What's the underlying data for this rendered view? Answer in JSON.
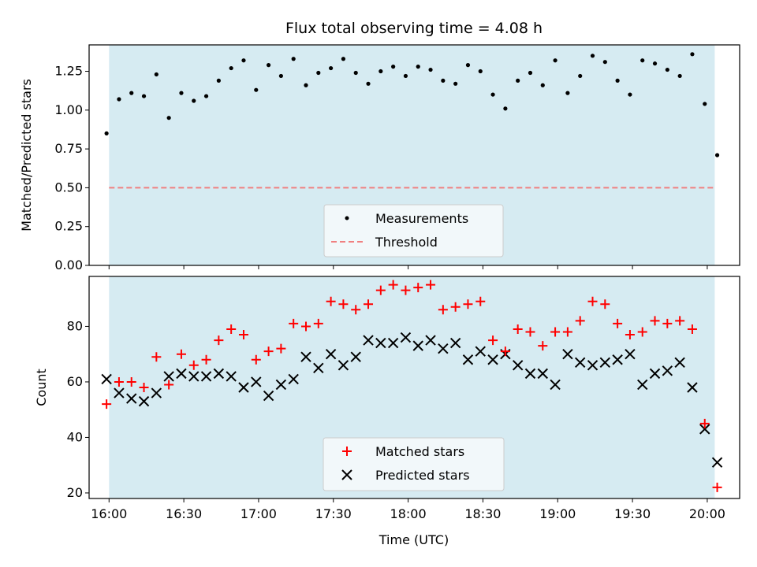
{
  "chart_data": [
    {
      "type": "scatter",
      "title": "Flux total observing time = 4.08 h",
      "ylabel": "Matched/Predicted stars",
      "ylim": [
        0,
        1.42
      ],
      "yticks": [
        0.0,
        0.25,
        0.5,
        0.75,
        1.0,
        1.25
      ],
      "ytick_labels": [
        "0.00",
        "0.25",
        "0.50",
        "0.75",
        "1.00",
        "1.25"
      ],
      "shaded_span": [
        "16:00",
        "20:03"
      ],
      "legend_position": "lower center",
      "series": [
        {
          "name": "Measurements",
          "marker": "dot",
          "color": "#000000",
          "x": [
            "15:59",
            "16:04",
            "16:09",
            "16:14",
            "16:19",
            "16:24",
            "16:29",
            "16:34",
            "16:39",
            "16:44",
            "16:49",
            "16:54",
            "16:59",
            "17:04",
            "17:09",
            "17:14",
            "17:19",
            "17:24",
            "17:29",
            "17:34",
            "17:39",
            "17:44",
            "17:49",
            "17:54",
            "17:59",
            "18:04",
            "18:09",
            "18:14",
            "18:19",
            "18:24",
            "18:29",
            "18:34",
            "18:39",
            "18:44",
            "18:49",
            "18:54",
            "18:59",
            "19:04",
            "19:09",
            "19:14",
            "19:19",
            "19:24",
            "19:29",
            "19:34",
            "19:39",
            "19:44",
            "19:49",
            "19:54",
            "19:59",
            "20:04"
          ],
          "y": [
            0.85,
            1.07,
            1.11,
            1.09,
            1.23,
            0.95,
            1.11,
            1.06,
            1.09,
            1.19,
            1.27,
            1.32,
            1.13,
            1.29,
            1.22,
            1.33,
            1.16,
            1.24,
            1.27,
            1.33,
            1.24,
            1.17,
            1.25,
            1.28,
            1.22,
            1.28,
            1.26,
            1.19,
            1.17,
            1.29,
            1.25,
            1.1,
            1.01,
            1.19,
            1.24,
            1.16,
            1.32,
            1.11,
            1.22,
            1.35,
            1.31,
            1.19,
            1.1,
            1.32,
            1.3,
            1.26,
            1.22,
            1.36,
            1.04,
            0.71
          ]
        },
        {
          "name": "Threshold",
          "style": "dashed",
          "color": "#f08080",
          "y": 0.5
        }
      ]
    },
    {
      "type": "scatter",
      "ylabel": "Count",
      "xlabel": "Time (UTC)",
      "ylim": [
        18,
        98
      ],
      "yticks": [
        20,
        40,
        60,
        80
      ],
      "xlim": [
        "15:52",
        "20:13"
      ],
      "xticks": [
        "16:00",
        "16:30",
        "17:00",
        "17:30",
        "18:00",
        "18:30",
        "19:00",
        "19:30",
        "20:00"
      ],
      "shaded_span": [
        "16:00",
        "20:03"
      ],
      "legend_position": "lower center",
      "series": [
        {
          "name": "Matched stars",
          "marker": "+",
          "color": "#ff0000",
          "x": [
            "15:59",
            "16:04",
            "16:09",
            "16:14",
            "16:19",
            "16:24",
            "16:29",
            "16:34",
            "16:39",
            "16:44",
            "16:49",
            "16:54",
            "16:59",
            "17:04",
            "17:09",
            "17:14",
            "17:19",
            "17:24",
            "17:29",
            "17:34",
            "17:39",
            "17:44",
            "17:49",
            "17:54",
            "17:59",
            "18:04",
            "18:09",
            "18:14",
            "18:19",
            "18:24",
            "18:29",
            "18:34",
            "18:39",
            "18:44",
            "18:49",
            "18:54",
            "18:59",
            "19:04",
            "19:09",
            "19:14",
            "19:19",
            "19:24",
            "19:29",
            "19:34",
            "19:39",
            "19:44",
            "19:49",
            "19:54",
            "19:59",
            "20:04"
          ],
          "y": [
            52,
            60,
            60,
            58,
            69,
            59,
            70,
            66,
            68,
            75,
            79,
            77,
            68,
            71,
            72,
            81,
            80,
            81,
            89,
            88,
            86,
            88,
            93,
            95,
            93,
            94,
            95,
            86,
            87,
            88,
            89,
            75,
            71,
            79,
            78,
            73,
            78,
            78,
            82,
            89,
            88,
            81,
            77,
            78,
            82,
            81,
            82,
            79,
            45,
            22
          ]
        },
        {
          "name": "Predicted stars",
          "marker": "x",
          "color": "#000000",
          "x": [
            "15:59",
            "16:04",
            "16:09",
            "16:14",
            "16:19",
            "16:24",
            "16:29",
            "16:34",
            "16:39",
            "16:44",
            "16:49",
            "16:54",
            "16:59",
            "17:04",
            "17:09",
            "17:14",
            "17:19",
            "17:24",
            "17:29",
            "17:34",
            "17:39",
            "17:44",
            "17:49",
            "17:54",
            "17:59",
            "18:04",
            "18:09",
            "18:14",
            "18:19",
            "18:24",
            "18:29",
            "18:34",
            "18:39",
            "18:44",
            "18:49",
            "18:54",
            "18:59",
            "19:04",
            "19:09",
            "19:14",
            "19:19",
            "19:24",
            "19:29",
            "19:34",
            "19:39",
            "19:44",
            "19:49",
            "19:54",
            "19:59",
            "20:04"
          ],
          "y": [
            61,
            56,
            54,
            53,
            56,
            62,
            63,
            62,
            62,
            63,
            62,
            58,
            60,
            55,
            59,
            61,
            69,
            65,
            70,
            66,
            69,
            75,
            74,
            74,
            76,
            73,
            75,
            72,
            74,
            68,
            71,
            68,
            70,
            66,
            63,
            63,
            59,
            70,
            67,
            66,
            67,
            68,
            70,
            59,
            63,
            64,
            67,
            58,
            43,
            31
          ]
        }
      ]
    }
  ]
}
